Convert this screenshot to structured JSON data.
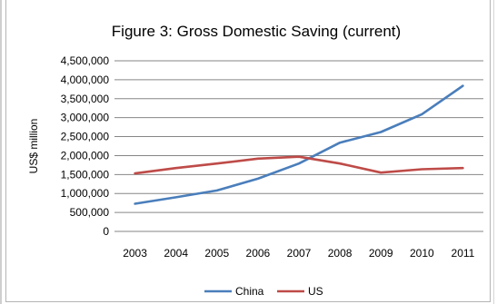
{
  "chart_data": {
    "type": "line",
    "title": "Figure 3: Gross Domestic Saving (current)",
    "xlabel": "",
    "ylabel": "US$ million",
    "categories": [
      "2003",
      "2004",
      "2005",
      "2006",
      "2007",
      "2008",
      "2009",
      "2010",
      "2011"
    ],
    "y_ticks": [
      "4,500,000",
      "4,000,000",
      "3,500,000",
      "3,000,000",
      "2,500,000",
      "2,000,000",
      "1,500,000",
      "1,000,000",
      "500,000",
      "0"
    ],
    "ylim": [
      0,
      4500000
    ],
    "grid": true,
    "legend_position": "bottom",
    "series": [
      {
        "name": "China",
        "color": "#4a7ebb",
        "values": [
          730000,
          900000,
          1080000,
          1390000,
          1790000,
          2340000,
          2620000,
          3090000,
          3840000
        ]
      },
      {
        "name": "US",
        "color": "#be4b48",
        "values": [
          1530000,
          1670000,
          1790000,
          1920000,
          1970000,
          1790000,
          1550000,
          1640000,
          1670000
        ]
      }
    ]
  }
}
